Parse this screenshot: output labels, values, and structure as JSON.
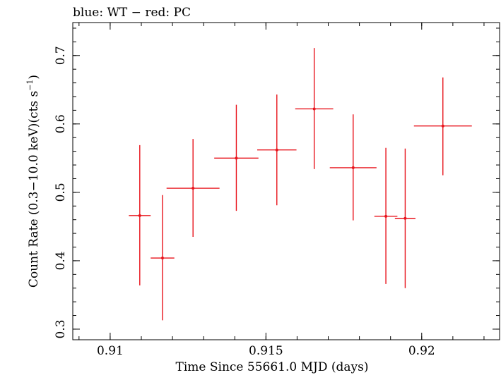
{
  "chart_data": {
    "type": "scatter",
    "title": "blue: WT − red: PC",
    "xlabel": "Time Since 55661.0 MJD (days)",
    "ylabel_main": "Count Rate (0.3−10.0 keV)(cts s",
    "ylabel_sup": "−1",
    "ylabel_close": ")",
    "xlim": [
      0.9088,
      0.9225
    ],
    "ylim": [
      0.2845,
      0.7482
    ],
    "xticks": [
      0.91,
      0.915,
      0.92
    ],
    "xtick_labels": [
      "0.91",
      "0.915",
      "0.92"
    ],
    "yticks": [
      0.3,
      0.4,
      0.5,
      0.6,
      0.7
    ],
    "ytick_labels": [
      "0.3",
      "0.4",
      "0.5",
      "0.6",
      "0.7"
    ],
    "grid": false,
    "series": [
      {
        "color": "#e8141c",
        "points": [
          {
            "x": 0.91095,
            "y": 0.466,
            "xerr": 0.00035,
            "ylo": 0.364,
            "yhi": 0.569
          },
          {
            "x": 0.91168,
            "y": 0.404,
            "xerr": 0.00038,
            "ylo": 0.313,
            "yhi": 0.496
          },
          {
            "x": 0.91266,
            "y": 0.506,
            "xerr": 0.00085,
            "ylo": 0.435,
            "yhi": 0.578
          },
          {
            "x": 0.91405,
            "y": 0.55,
            "xerr": 0.00071,
            "ylo": 0.473,
            "yhi": 0.628
          },
          {
            "x": 0.91535,
            "y": 0.562,
            "xerr": 0.00063,
            "ylo": 0.481,
            "yhi": 0.643
          },
          {
            "x": 0.91655,
            "y": 0.622,
            "xerr": 0.00061,
            "ylo": 0.534,
            "yhi": 0.711
          },
          {
            "x": 0.9178,
            "y": 0.536,
            "xerr": 0.00075,
            "ylo": 0.459,
            "yhi": 0.614
          },
          {
            "x": 0.91885,
            "y": 0.465,
            "xerr": 0.00037,
            "ylo": 0.366,
            "yhi": 0.565
          },
          {
            "x": 0.91947,
            "y": 0.462,
            "xerr": 0.00033,
            "ylo": 0.36,
            "yhi": 0.564
          },
          {
            "x": 0.92068,
            "y": 0.597,
            "xerr": 0.00093,
            "ylo": 0.525,
            "yhi": 0.668
          }
        ]
      }
    ]
  }
}
